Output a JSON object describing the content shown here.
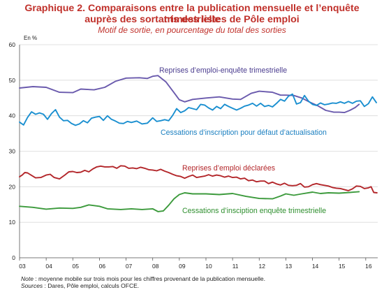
{
  "header": {
    "title_line1": "Graphique 2. Comparaisons entre la publication mensuelle et l’enquête trimestrielle",
    "title_line2": "auprès des sortants des listes de Pôle emploi",
    "subtitle": "Motif de sortie, en pourcentage du total des sorties"
  },
  "chart_data": {
    "type": "line",
    "unit_label": "En %",
    "x_ticks": [
      "03",
      "04",
      "05",
      "06",
      "07",
      "08",
      "09",
      "10",
      "11",
      "12",
      "13",
      "14",
      "15",
      "16"
    ],
    "x_range": [
      2003.0,
      2016.45
    ],
    "y_ticks": [
      "0",
      "10",
      "20",
      "30",
      "40",
      "50",
      "60"
    ],
    "ylim": [
      0,
      60
    ],
    "grid": "horizontal",
    "series": [
      {
        "name": "Reprises d'emploi-enquête trimestrielle",
        "color": "#6a5aad",
        "points": [
          [
            2003.0,
            47.8
          ],
          [
            2003.5,
            48.2
          ],
          [
            2004.0,
            48.0
          ],
          [
            2004.5,
            46.6
          ],
          [
            2005.0,
            46.5
          ],
          [
            2005.3,
            47.5
          ],
          [
            2005.8,
            47.3
          ],
          [
            2006.2,
            48.0
          ],
          [
            2006.6,
            49.7
          ],
          [
            2007.0,
            50.6
          ],
          [
            2007.5,
            50.7
          ],
          [
            2007.8,
            50.5
          ],
          [
            2008.0,
            51.1
          ],
          [
            2008.2,
            51.3
          ],
          [
            2008.5,
            49.5
          ],
          [
            2008.8,
            46.5
          ],
          [
            2009.0,
            44.5
          ],
          [
            2009.2,
            43.9
          ],
          [
            2009.5,
            44.6
          ],
          [
            2010.0,
            45.0
          ],
          [
            2010.5,
            45.3
          ],
          [
            2011.0,
            44.7
          ],
          [
            2011.3,
            44.6
          ],
          [
            2011.7,
            46.3
          ],
          [
            2012.0,
            46.9
          ],
          [
            2012.5,
            46.6
          ],
          [
            2012.8,
            45.8
          ],
          [
            2013.0,
            45.8
          ],
          [
            2013.3,
            45.7
          ],
          [
            2013.6,
            45.0
          ],
          [
            2013.9,
            43.8
          ],
          [
            2014.2,
            42.8
          ],
          [
            2014.5,
            41.5
          ],
          [
            2014.8,
            41.0
          ],
          [
            2015.0,
            41.0
          ],
          [
            2015.2,
            40.9
          ],
          [
            2015.4,
            41.5
          ],
          [
            2015.6,
            42.3
          ],
          [
            2015.75,
            43.2
          ]
        ]
      },
      {
        "name": "Cessations d'inscription pour défaut d'actualisation",
        "color": "#1a8fd0",
        "points": [
          [
            2003.0,
            38.2
          ],
          [
            2003.15,
            37.4
          ],
          [
            2003.3,
            39.5
          ],
          [
            2003.45,
            41.1
          ],
          [
            2003.6,
            40.4
          ],
          [
            2003.75,
            40.8
          ],
          [
            2003.9,
            40.4
          ],
          [
            2004.05,
            39.0
          ],
          [
            2004.2,
            40.6
          ],
          [
            2004.35,
            41.7
          ],
          [
            2004.5,
            39.6
          ],
          [
            2004.65,
            38.6
          ],
          [
            2004.8,
            38.7
          ],
          [
            2004.95,
            37.8
          ],
          [
            2005.1,
            37.3
          ],
          [
            2005.25,
            37.7
          ],
          [
            2005.4,
            38.6
          ],
          [
            2005.55,
            38.0
          ],
          [
            2005.7,
            39.3
          ],
          [
            2005.85,
            39.6
          ],
          [
            2006.0,
            39.8
          ],
          [
            2006.15,
            38.7
          ],
          [
            2006.3,
            40.0
          ],
          [
            2006.45,
            39.0
          ],
          [
            2006.6,
            38.5
          ],
          [
            2006.75,
            37.9
          ],
          [
            2006.9,
            37.8
          ],
          [
            2007.05,
            38.4
          ],
          [
            2007.2,
            38.1
          ],
          [
            2007.4,
            38.5
          ],
          [
            2007.6,
            37.7
          ],
          [
            2007.8,
            37.9
          ],
          [
            2008.0,
            39.4
          ],
          [
            2008.15,
            38.4
          ],
          [
            2008.3,
            38.6
          ],
          [
            2008.45,
            38.9
          ],
          [
            2008.6,
            38.6
          ],
          [
            2008.75,
            40.1
          ],
          [
            2008.9,
            42.0
          ],
          [
            2009.05,
            40.9
          ],
          [
            2009.2,
            41.4
          ],
          [
            2009.35,
            42.3
          ],
          [
            2009.5,
            42.0
          ],
          [
            2009.65,
            41.7
          ],
          [
            2009.8,
            43.2
          ],
          [
            2009.95,
            43.0
          ],
          [
            2010.1,
            42.2
          ],
          [
            2010.25,
            41.6
          ],
          [
            2010.4,
            42.6
          ],
          [
            2010.55,
            42.0
          ],
          [
            2010.7,
            43.2
          ],
          [
            2010.85,
            42.6
          ],
          [
            2011.0,
            42.1
          ],
          [
            2011.15,
            41.6
          ],
          [
            2011.3,
            42.1
          ],
          [
            2011.45,
            42.7
          ],
          [
            2011.6,
            43.0
          ],
          [
            2011.75,
            43.5
          ],
          [
            2011.9,
            42.7
          ],
          [
            2012.05,
            43.5
          ],
          [
            2012.2,
            42.6
          ],
          [
            2012.35,
            42.9
          ],
          [
            2012.5,
            42.5
          ],
          [
            2012.65,
            43.5
          ],
          [
            2012.8,
            44.6
          ],
          [
            2012.95,
            44.1
          ],
          [
            2013.1,
            45.5
          ],
          [
            2013.25,
            46.1
          ],
          [
            2013.4,
            43.3
          ],
          [
            2013.55,
            43.7
          ],
          [
            2013.7,
            45.7
          ],
          [
            2013.85,
            44.1
          ],
          [
            2014.0,
            43.2
          ],
          [
            2014.15,
            42.9
          ],
          [
            2014.3,
            43.6
          ],
          [
            2014.45,
            43.1
          ],
          [
            2014.6,
            43.3
          ],
          [
            2014.75,
            43.6
          ],
          [
            2014.9,
            43.5
          ],
          [
            2015.05,
            43.9
          ],
          [
            2015.2,
            43.5
          ],
          [
            2015.35,
            44.0
          ],
          [
            2015.5,
            43.5
          ],
          [
            2015.65,
            44.1
          ],
          [
            2015.8,
            44.2
          ],
          [
            2015.95,
            42.6
          ],
          [
            2016.1,
            43.4
          ],
          [
            2016.25,
            45.3
          ],
          [
            2016.4,
            43.7
          ]
        ]
      },
      {
        "name": "Reprises d'emploi déclarées",
        "color": "#b3262a",
        "points": [
          [
            2003.0,
            22.8
          ],
          [
            2003.1,
            23.3
          ],
          [
            2003.2,
            24.0
          ],
          [
            2003.3,
            23.9
          ],
          [
            2003.45,
            23.2
          ],
          [
            2003.6,
            22.5
          ],
          [
            2003.8,
            22.6
          ],
          [
            2004.0,
            23.3
          ],
          [
            2004.15,
            23.5
          ],
          [
            2004.3,
            22.6
          ],
          [
            2004.5,
            22.2
          ],
          [
            2004.7,
            23.3
          ],
          [
            2004.85,
            24.2
          ],
          [
            2005.0,
            24.3
          ],
          [
            2005.15,
            24.0
          ],
          [
            2005.3,
            24.1
          ],
          [
            2005.45,
            24.6
          ],
          [
            2005.6,
            24.2
          ],
          [
            2005.75,
            25.0
          ],
          [
            2005.9,
            25.6
          ],
          [
            2006.05,
            25.8
          ],
          [
            2006.2,
            25.6
          ],
          [
            2006.35,
            25.6
          ],
          [
            2006.5,
            25.7
          ],
          [
            2006.65,
            25.2
          ],
          [
            2006.8,
            25.9
          ],
          [
            2006.95,
            25.8
          ],
          [
            2007.1,
            25.2
          ],
          [
            2007.25,
            25.3
          ],
          [
            2007.4,
            25.1
          ],
          [
            2007.55,
            25.5
          ],
          [
            2007.7,
            25.2
          ],
          [
            2007.85,
            24.8
          ],
          [
            2008.0,
            24.7
          ],
          [
            2008.15,
            24.5
          ],
          [
            2008.3,
            24.9
          ],
          [
            2008.45,
            24.4
          ],
          [
            2008.6,
            24.0
          ],
          [
            2008.75,
            23.5
          ],
          [
            2008.9,
            23.1
          ],
          [
            2009.05,
            22.9
          ],
          [
            2009.2,
            22.4
          ],
          [
            2009.35,
            22.9
          ],
          [
            2009.5,
            23.3
          ],
          [
            2009.65,
            22.6
          ],
          [
            2009.8,
            22.8
          ],
          [
            2009.95,
            23.0
          ],
          [
            2010.1,
            23.4
          ],
          [
            2010.25,
            23.0
          ],
          [
            2010.4,
            23.3
          ],
          [
            2010.55,
            23.1
          ],
          [
            2010.7,
            22.7
          ],
          [
            2010.85,
            23.0
          ],
          [
            2011.0,
            22.6
          ],
          [
            2011.15,
            22.7
          ],
          [
            2011.3,
            22.2
          ],
          [
            2011.45,
            22.4
          ],
          [
            2011.6,
            21.7
          ],
          [
            2011.75,
            21.9
          ],
          [
            2011.9,
            21.4
          ],
          [
            2012.05,
            21.6
          ],
          [
            2012.2,
            21.6
          ],
          [
            2012.35,
            20.9
          ],
          [
            2012.5,
            21.3
          ],
          [
            2012.65,
            20.8
          ],
          [
            2012.8,
            20.5
          ],
          [
            2012.95,
            21.0
          ],
          [
            2013.1,
            20.4
          ],
          [
            2013.25,
            20.3
          ],
          [
            2013.4,
            20.4
          ],
          [
            2013.55,
            20.9
          ],
          [
            2013.7,
            19.9
          ],
          [
            2013.85,
            20.0
          ],
          [
            2014.0,
            20.6
          ],
          [
            2014.15,
            20.9
          ],
          [
            2014.3,
            20.6
          ],
          [
            2014.45,
            20.4
          ],
          [
            2014.6,
            20.2
          ],
          [
            2014.75,
            19.8
          ],
          [
            2014.9,
            19.6
          ],
          [
            2015.05,
            19.5
          ],
          [
            2015.2,
            19.2
          ],
          [
            2015.35,
            18.9
          ],
          [
            2015.5,
            19.4
          ],
          [
            2015.65,
            20.2
          ],
          [
            2015.8,
            20.1
          ],
          [
            2015.95,
            19.5
          ],
          [
            2016.1,
            19.7
          ],
          [
            2016.2,
            20.0
          ],
          [
            2016.3,
            18.4
          ],
          [
            2016.42,
            18.3
          ]
        ]
      },
      {
        "name": "Cessations d'insciption enquête trimestrielle",
        "color": "#3c9a3c",
        "points": [
          [
            2003.0,
            14.5
          ],
          [
            2003.5,
            14.2
          ],
          [
            2004.0,
            13.7
          ],
          [
            2004.5,
            14.0
          ],
          [
            2005.0,
            13.9
          ],
          [
            2005.3,
            14.2
          ],
          [
            2005.6,
            14.9
          ],
          [
            2006.0,
            14.5
          ],
          [
            2006.3,
            13.8
          ],
          [
            2006.8,
            13.6
          ],
          [
            2007.2,
            13.8
          ],
          [
            2007.6,
            13.6
          ],
          [
            2008.0,
            13.8
          ],
          [
            2008.2,
            13.0
          ],
          [
            2008.4,
            13.2
          ],
          [
            2008.6,
            14.8
          ],
          [
            2008.8,
            16.6
          ],
          [
            2009.0,
            17.8
          ],
          [
            2009.2,
            18.3
          ],
          [
            2009.5,
            18.0
          ],
          [
            2010.0,
            18.0
          ],
          [
            2010.5,
            17.8
          ],
          [
            2011.0,
            18.1
          ],
          [
            2011.5,
            17.3
          ],
          [
            2012.0,
            16.7
          ],
          [
            2012.5,
            16.6
          ],
          [
            2012.8,
            17.4
          ],
          [
            2013.0,
            18.0
          ],
          [
            2013.3,
            17.6
          ],
          [
            2013.6,
            18.0
          ],
          [
            2014.0,
            18.5
          ],
          [
            2014.3,
            18.1
          ],
          [
            2014.6,
            18.3
          ],
          [
            2015.0,
            18.2
          ],
          [
            2015.4,
            18.4
          ],
          [
            2015.75,
            18.6
          ]
        ]
      }
    ],
    "series_labels": [
      {
        "text": "Reprises d’emploi-enquête trimestrielle",
        "color": "#4b3d8f"
      },
      {
        "text": "Cessations d’inscription pour défaut d’actualisation",
        "color": "#1a7fc0"
      },
      {
        "text": "Reprises d’emploi déclarées",
        "color": "#b3262a"
      },
      {
        "text": "Cessations d’insciption enquête trimestrielle",
        "color": "#2f8f2f"
      }
    ]
  },
  "footer": {
    "note_label": "Note",
    "note_text": " : moyenne mobile sur trois mois pour les chiffres provenant de la publication mensuelle.",
    "sources_label": "Sources",
    "sources_text": " : Dares, Pôle emploi, calculs OFCE."
  }
}
